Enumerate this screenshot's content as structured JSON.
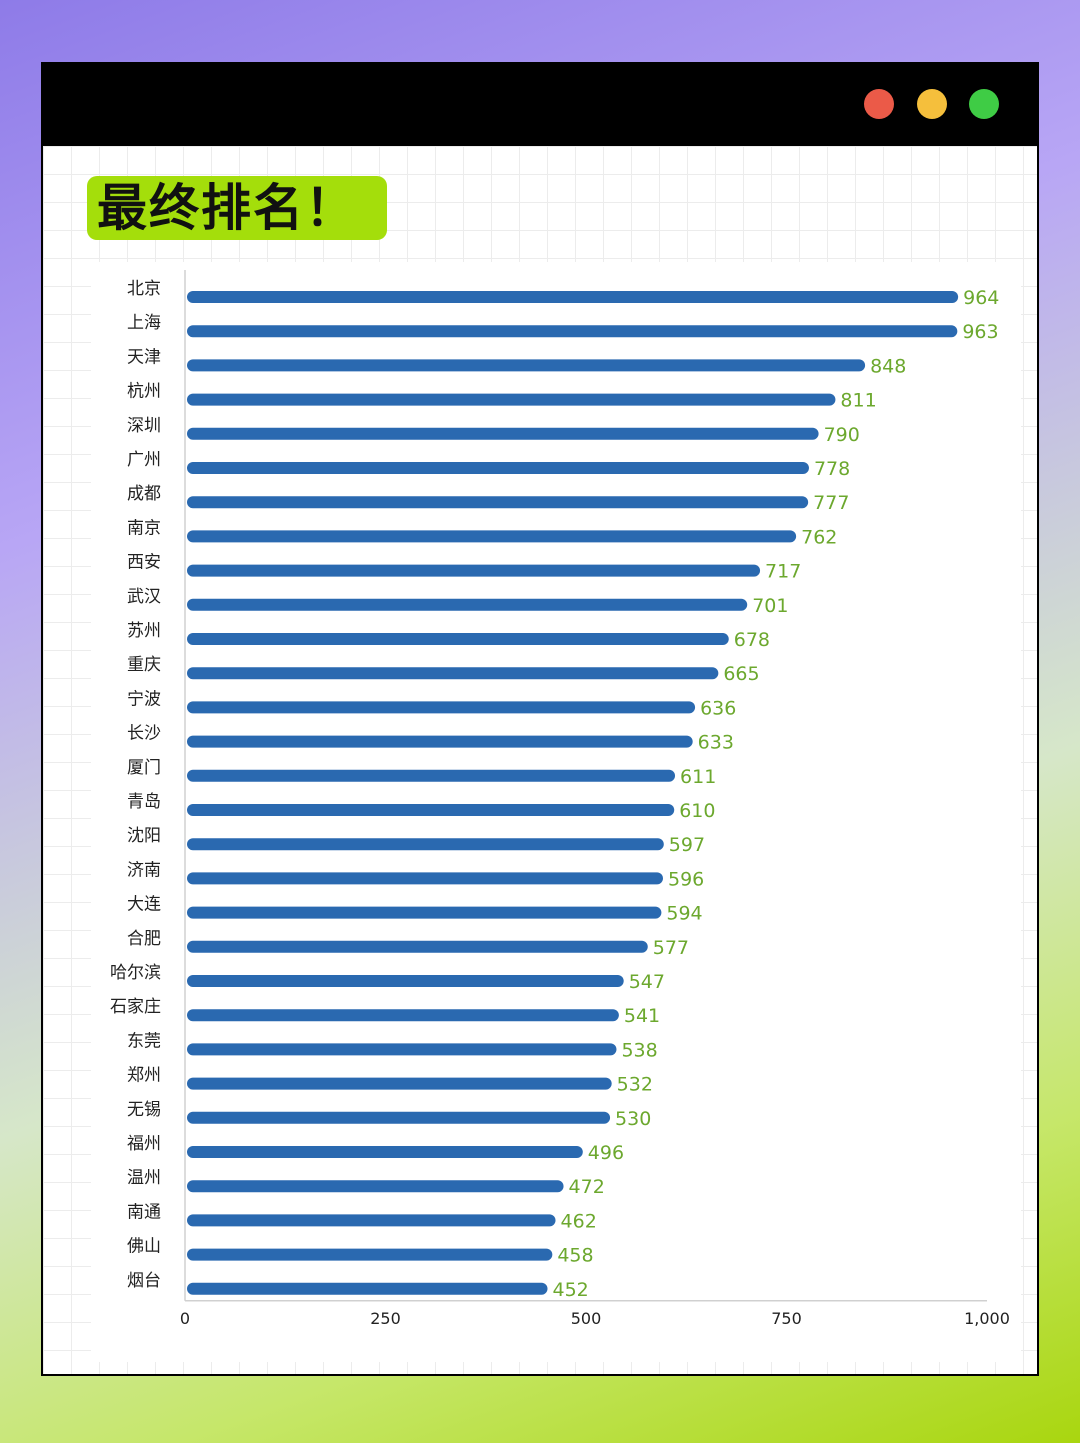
{
  "window": {
    "controls": {
      "close_color": "#eb5a48",
      "minimize_color": "#f5bf3c",
      "maximize_color": "#3fcc45"
    }
  },
  "heading": {
    "text": "最终排名！",
    "badge_color": "#a4de0b"
  },
  "chart_data": {
    "type": "bar",
    "orientation": "horizontal",
    "title": "",
    "xlabel": "",
    "ylabel": "",
    "xlim": [
      0,
      1000
    ],
    "ticks": [
      0,
      250,
      500,
      750,
      1000
    ],
    "tick_labels": [
      "0",
      "250",
      "500",
      "750",
      "1,000"
    ],
    "bar_color": "#2a69b0",
    "value_label_color": "#6ca82e",
    "grid": false,
    "categories": [
      "北京",
      "上海",
      "天津",
      "杭州",
      "深圳",
      "广州",
      "成都",
      "南京",
      "西安",
      "武汉",
      "苏州",
      "重庆",
      "宁波",
      "长沙",
      "厦门",
      "青岛",
      "沈阳",
      "济南",
      "大连",
      "合肥",
      "哈尔滨",
      "石家庄",
      "东莞",
      "郑州",
      "无锡",
      "福州",
      "温州",
      "南通",
      "佛山",
      "烟台"
    ],
    "values": [
      964,
      963,
      848,
      811,
      790,
      778,
      777,
      762,
      717,
      701,
      678,
      665,
      636,
      633,
      611,
      610,
      597,
      596,
      594,
      577,
      547,
      541,
      538,
      532,
      530,
      496,
      472,
      462,
      458,
      452
    ]
  }
}
